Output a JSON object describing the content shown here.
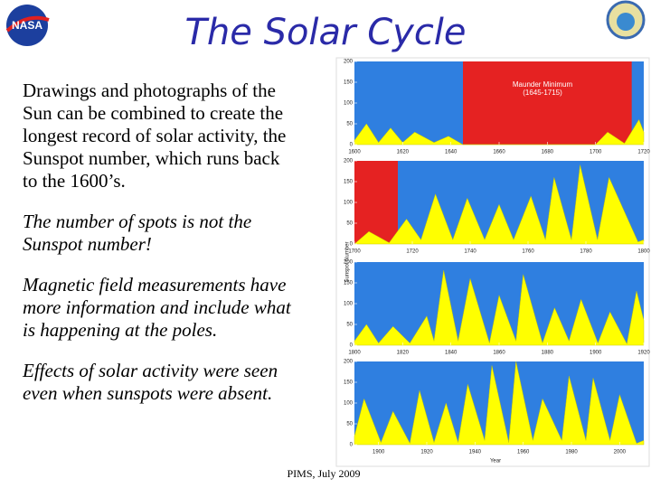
{
  "title": "The Solar Cycle",
  "logo_text": "NASA",
  "paragraphs": [
    {
      "italic": false,
      "lines": [
        "Drawings and photographs of the",
        "Sun can be combined to create the",
        "longest record of solar activity, the",
        "Sunspot number, which runs back",
        "to the 1600’s."
      ]
    },
    {
      "italic": true,
      "lines": [
        "The number of spots is not the",
        "Sunspot number!"
      ]
    },
    {
      "italic": true,
      "lines": [
        "Magnetic field measurements have",
        "more information and include what",
        "is happening at the poles."
      ]
    },
    {
      "italic": true,
      "lines": [
        "Effects of solar activity were seen",
        "even when sunspots were absent."
      ]
    }
  ],
  "footer": "PIMS, July 2009",
  "figure": {
    "y_label": "Sunspot Number",
    "x_label": "Year",
    "annotation": "Maunder Minimum",
    "annotation_sub": "(1645-1715)",
    "panels": [
      {
        "xlim": [
          1600,
          1720
        ],
        "xticks": [
          1600,
          1620,
          1640,
          1660,
          1680,
          1700,
          1720
        ],
        "ylim": [
          0,
          200
        ],
        "yticks": [
          0,
          50,
          100,
          150,
          200
        ],
        "red": [
          1645,
          1715
        ],
        "x": [
          1600,
          1605,
          1610,
          1615,
          1620,
          1625,
          1633,
          1639,
          1645,
          1700,
          1705,
          1712,
          1718,
          1720
        ],
        "values": [
          10,
          50,
          5,
          40,
          5,
          30,
          5,
          20,
          0,
          0,
          30,
          3,
          60,
          30
        ]
      },
      {
        "xlim": [
          1700,
          1800
        ],
        "xticks": [
          1700,
          1720,
          1740,
          1760,
          1780,
          1800
        ],
        "ylim": [
          0,
          200
        ],
        "yticks": [
          0,
          50,
          100,
          150,
          200
        ],
        "red": [
          1700,
          1715
        ],
        "x": [
          1700,
          1705,
          1712,
          1718,
          1723,
          1728,
          1734,
          1739,
          1745,
          1750,
          1755,
          1761,
          1766,
          1769,
          1775,
          1778,
          1784,
          1788,
          1798,
          1800
        ],
        "values": [
          0,
          30,
          3,
          60,
          10,
          120,
          10,
          110,
          10,
          95,
          10,
          115,
          10,
          160,
          10,
          190,
          10,
          160,
          5,
          10
        ]
      },
      {
        "xlim": [
          1800,
          1920
        ],
        "xticks": [
          1800,
          1820,
          1840,
          1860,
          1880,
          1900,
          1920
        ],
        "ylim": [
          0,
          200
        ],
        "yticks": [
          0,
          50,
          100,
          150,
          200
        ],
        "x": [
          1800,
          1805,
          1810,
          1816,
          1823,
          1830,
          1833,
          1837,
          1843,
          1848,
          1856,
          1860,
          1867,
          1870,
          1878,
          1883,
          1889,
          1894,
          1901,
          1906,
          1913,
          1917,
          1920
        ],
        "values": [
          10,
          50,
          5,
          45,
          5,
          70,
          10,
          180,
          10,
          160,
          5,
          120,
          10,
          170,
          5,
          90,
          10,
          110,
          5,
          80,
          3,
          130,
          60
        ]
      },
      {
        "xlim": [
          1890,
          2010
        ],
        "xticks": [
          1900,
          1920,
          1940,
          1960,
          1980,
          2000
        ],
        "ylim": [
          0,
          200
        ],
        "yticks": [
          0,
          50,
          100,
          150,
          200
        ],
        "x": [
          1890,
          1894,
          1901,
          1906,
          1913,
          1917,
          1923,
          1928,
          1933,
          1937,
          1944,
          1947,
          1954,
          1957,
          1964,
          1968,
          1976,
          1979,
          1986,
          1989,
          1996,
          2000,
          2007,
          2010
        ],
        "values": [
          20,
          110,
          5,
          80,
          3,
          130,
          5,
          100,
          5,
          145,
          10,
          190,
          5,
          200,
          10,
          110,
          10,
          165,
          10,
          160,
          10,
          120,
          3,
          10
        ]
      }
    ]
  }
}
